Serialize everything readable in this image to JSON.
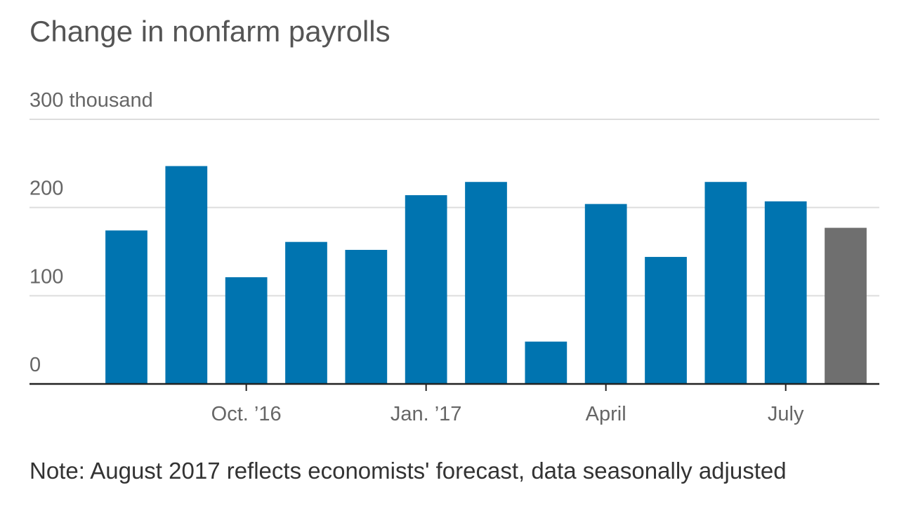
{
  "chart_data": {
    "type": "bar",
    "title": "Change in nonfarm payrolls",
    "categories": [
      null,
      null,
      "Oct. ’16",
      null,
      null,
      "Jan. ’17",
      null,
      null,
      "April",
      null,
      null,
      "July",
      null
    ],
    "values": [
      174,
      247,
      121,
      161,
      152,
      214,
      229,
      48,
      204,
      144,
      229,
      207,
      177
    ],
    "colors": [
      "#0074b0",
      "#0074b0",
      "#0074b0",
      "#0074b0",
      "#0074b0",
      "#0074b0",
      "#0074b0",
      "#0074b0",
      "#0074b0",
      "#0074b0",
      "#0074b0",
      "#0074b0",
      "#6f6f6f"
    ],
    "ylim": [
      0,
      300
    ],
    "yticks": [
      0,
      100,
      200,
      {
        "value": 300,
        "label": "300 thousand"
      }
    ],
    "grid": true,
    "note": "Note: August 2017 reflects economists' forecast, data seasonally adjusted"
  }
}
